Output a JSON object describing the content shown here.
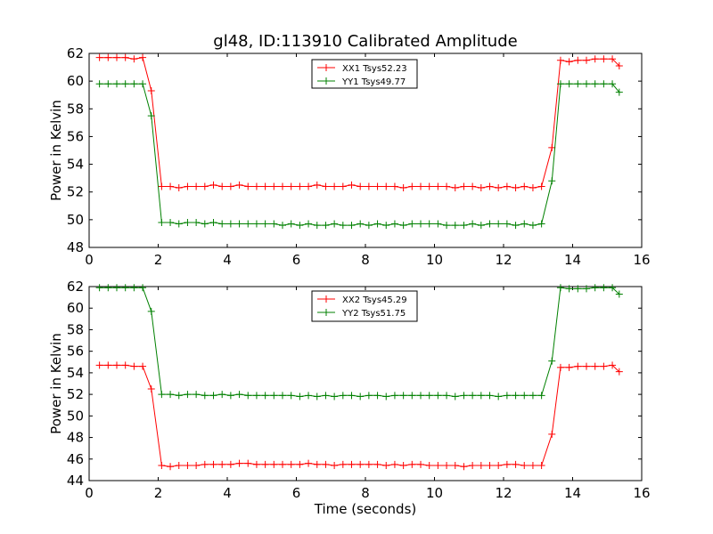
{
  "chart_data": [
    {
      "type": "line",
      "title": "gl48, ID:113910 Calibrated Amplitude",
      "xlabel": "",
      "ylabel": "Power in Kelvin",
      "xlim": [
        0,
        16
      ],
      "ylim": [
        48,
        62
      ],
      "xticks": [
        "0",
        "2",
        "4",
        "6",
        "8",
        "10",
        "12",
        "14",
        "16"
      ],
      "yticks": [
        "48",
        "50",
        "52",
        "54",
        "56",
        "58",
        "60",
        "62"
      ],
      "legend_position": "top-center",
      "grid": false,
      "x": [
        0.3,
        0.55,
        0.8,
        1.05,
        1.3,
        1.55,
        1.8,
        2.1,
        2.35,
        2.6,
        2.85,
        3.1,
        3.35,
        3.6,
        3.85,
        4.1,
        4.35,
        4.6,
        4.85,
        5.1,
        5.35,
        5.6,
        5.85,
        6.1,
        6.35,
        6.6,
        6.85,
        7.1,
        7.35,
        7.6,
        7.85,
        8.1,
        8.35,
        8.6,
        8.85,
        9.1,
        9.35,
        9.6,
        9.85,
        10.1,
        10.35,
        10.6,
        10.85,
        11.1,
        11.35,
        11.6,
        11.85,
        12.1,
        12.35,
        12.6,
        12.85,
        13.1,
        13.4,
        13.65,
        13.9,
        14.15,
        14.4,
        14.65,
        14.9,
        15.15,
        15.35
      ],
      "series": [
        {
          "name": "XX1 Tsys52.23",
          "color": "#ff0000",
          "values": [
            61.7,
            61.7,
            61.7,
            61.7,
            61.6,
            61.7,
            59.3,
            52.4,
            52.4,
            52.3,
            52.4,
            52.4,
            52.4,
            52.5,
            52.4,
            52.4,
            52.5,
            52.4,
            52.4,
            52.4,
            52.4,
            52.4,
            52.4,
            52.4,
            52.4,
            52.5,
            52.4,
            52.4,
            52.4,
            52.5,
            52.4,
            52.4,
            52.4,
            52.4,
            52.4,
            52.3,
            52.4,
            52.4,
            52.4,
            52.4,
            52.4,
            52.3,
            52.4,
            52.4,
            52.3,
            52.4,
            52.3,
            52.4,
            52.3,
            52.4,
            52.3,
            52.4,
            55.2,
            61.5,
            61.4,
            61.5,
            61.5,
            61.6,
            61.6,
            61.6,
            61.1
          ]
        },
        {
          "name": "YY1 Tsys49.77",
          "color": "#008000",
          "values": [
            59.8,
            59.8,
            59.8,
            59.8,
            59.8,
            59.8,
            57.5,
            49.8,
            49.8,
            49.7,
            49.8,
            49.8,
            49.7,
            49.8,
            49.7,
            49.7,
            49.7,
            49.7,
            49.7,
            49.7,
            49.7,
            49.6,
            49.7,
            49.6,
            49.7,
            49.6,
            49.6,
            49.7,
            49.6,
            49.6,
            49.7,
            49.6,
            49.7,
            49.6,
            49.7,
            49.6,
            49.7,
            49.7,
            49.7,
            49.7,
            49.6,
            49.6,
            49.6,
            49.7,
            49.6,
            49.7,
            49.7,
            49.7,
            49.6,
            49.7,
            49.6,
            49.7,
            52.8,
            59.8,
            59.8,
            59.8,
            59.8,
            59.8,
            59.8,
            59.8,
            59.2
          ]
        }
      ]
    },
    {
      "type": "line",
      "title": "",
      "xlabel": "Time (seconds)",
      "ylabel": "Power in Kelvin",
      "xlim": [
        0,
        16
      ],
      "ylim": [
        44,
        62
      ],
      "xticks": [
        "0",
        "2",
        "4",
        "6",
        "8",
        "10",
        "12",
        "14",
        "16"
      ],
      "yticks": [
        "44",
        "46",
        "48",
        "50",
        "52",
        "54",
        "56",
        "58",
        "60",
        "62"
      ],
      "legend_position": "top-center",
      "grid": false,
      "x": [
        0.3,
        0.55,
        0.8,
        1.05,
        1.3,
        1.55,
        1.8,
        2.1,
        2.35,
        2.6,
        2.85,
        3.1,
        3.35,
        3.6,
        3.85,
        4.1,
        4.35,
        4.6,
        4.85,
        5.1,
        5.35,
        5.6,
        5.85,
        6.1,
        6.35,
        6.6,
        6.85,
        7.1,
        7.35,
        7.6,
        7.85,
        8.1,
        8.35,
        8.6,
        8.85,
        9.1,
        9.35,
        9.6,
        9.85,
        10.1,
        10.35,
        10.6,
        10.85,
        11.1,
        11.35,
        11.6,
        11.85,
        12.1,
        12.35,
        12.6,
        12.85,
        13.1,
        13.4,
        13.65,
        13.9,
        14.15,
        14.4,
        14.65,
        14.9,
        15.15,
        15.35
      ],
      "series": [
        {
          "name": "XX2 Tsys45.29",
          "color": "#ff0000",
          "values": [
            54.7,
            54.7,
            54.7,
            54.7,
            54.6,
            54.6,
            52.5,
            45.4,
            45.3,
            45.4,
            45.4,
            45.4,
            45.5,
            45.5,
            45.5,
            45.5,
            45.6,
            45.6,
            45.5,
            45.5,
            45.5,
            45.5,
            45.5,
            45.5,
            45.6,
            45.5,
            45.5,
            45.4,
            45.5,
            45.5,
            45.5,
            45.5,
            45.5,
            45.4,
            45.5,
            45.4,
            45.5,
            45.5,
            45.4,
            45.4,
            45.4,
            45.4,
            45.3,
            45.4,
            45.4,
            45.4,
            45.4,
            45.5,
            45.5,
            45.4,
            45.4,
            45.4,
            48.3,
            54.5,
            54.5,
            54.6,
            54.6,
            54.6,
            54.6,
            54.7,
            54.1
          ]
        },
        {
          "name": "YY2 Tsys51.75",
          "color": "#008000",
          "values": [
            61.9,
            61.9,
            61.9,
            61.9,
            61.9,
            61.9,
            59.7,
            52.0,
            52.0,
            51.9,
            52.0,
            52.0,
            51.9,
            51.9,
            52.0,
            51.9,
            52.0,
            51.9,
            51.9,
            51.9,
            51.9,
            51.9,
            51.9,
            51.8,
            51.9,
            51.8,
            51.9,
            51.8,
            51.9,
            51.9,
            51.8,
            51.9,
            51.9,
            51.8,
            51.9,
            51.9,
            51.9,
            51.9,
            51.9,
            51.9,
            51.9,
            51.8,
            51.9,
            51.9,
            51.9,
            51.9,
            51.8,
            51.9,
            51.9,
            51.9,
            51.9,
            51.9,
            55.1,
            61.9,
            61.8,
            61.8,
            61.8,
            61.9,
            61.9,
            61.9,
            61.3
          ]
        }
      ]
    }
  ]
}
